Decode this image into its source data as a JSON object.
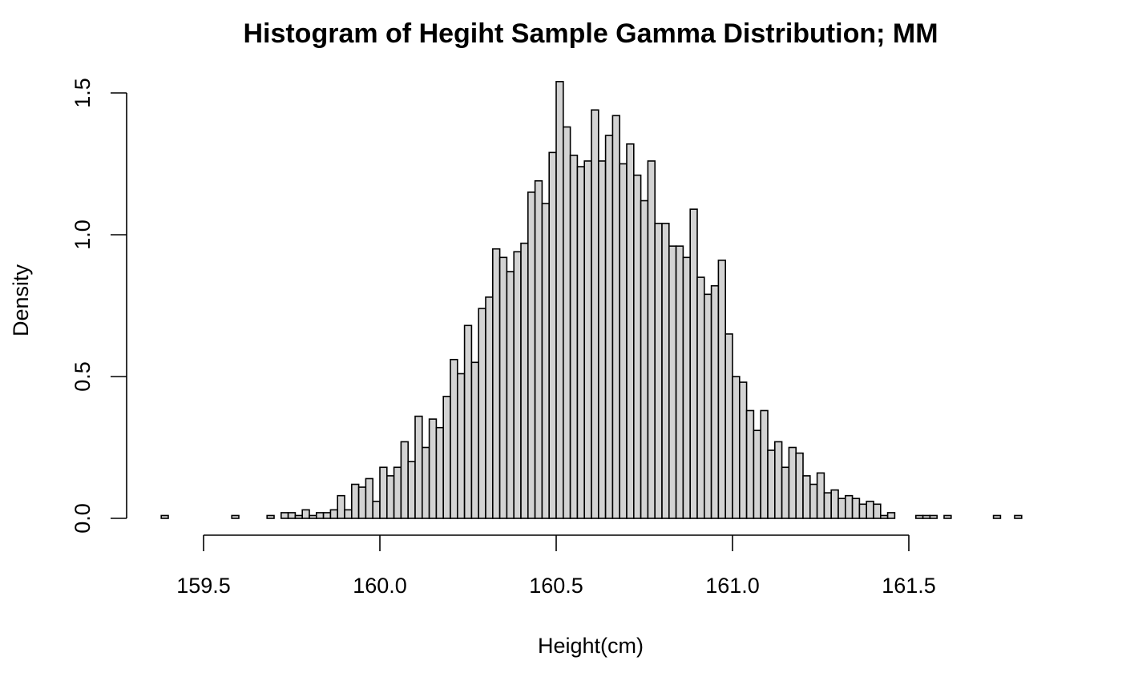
{
  "chart_data": {
    "type": "bar",
    "subtype": "histogram",
    "title": "Histogram of Hegiht Sample Gamma Distribution; MM",
    "xlabel": "Height(cm)",
    "ylabel": "Density",
    "xlim": [
      159.38,
      161.82
    ],
    "ylim": [
      0,
      1.55
    ],
    "x_ticks": [
      "159.5",
      "160.0",
      "160.5",
      "161.0",
      "161.5"
    ],
    "y_ticks": [
      "0.0",
      "0.5",
      "1.0",
      "1.5"
    ],
    "bin_start": 159.38,
    "bin_width": 0.02,
    "values": [
      0.01,
      0,
      0,
      0,
      0,
      0,
      0,
      0,
      0,
      0,
      0.01,
      0,
      0,
      0,
      0,
      0.01,
      0,
      0.02,
      0.02,
      0.01,
      0.03,
      0.01,
      0.02,
      0.02,
      0.03,
      0.08,
      0.03,
      0.12,
      0.11,
      0.14,
      0.06,
      0.18,
      0.15,
      0.18,
      0.27,
      0.2,
      0.36,
      0.25,
      0.35,
      0.32,
      0.43,
      0.56,
      0.51,
      0.68,
      0.55,
      0.74,
      0.78,
      0.95,
      0.92,
      0.87,
      0.94,
      0.97,
      1.15,
      1.19,
      1.11,
      1.29,
      1.54,
      1.38,
      1.28,
      1.24,
      1.26,
      1.44,
      1.26,
      1.35,
      1.42,
      1.25,
      1.32,
      1.21,
      1.12,
      1.26,
      1.04,
      1.04,
      0.96,
      0.96,
      0.92,
      1.09,
      0.85,
      0.79,
      0.82,
      0.91,
      0.65,
      0.5,
      0.48,
      0.38,
      0.31,
      0.38,
      0.24,
      0.27,
      0.18,
      0.25,
      0.23,
      0.15,
      0.12,
      0.16,
      0.09,
      0.1,
      0.07,
      0.08,
      0.07,
      0.05,
      0.06,
      0.05,
      0.01,
      0.02,
      0,
      0,
      0,
      0.01,
      0.01,
      0.01,
      0,
      0.01,
      0,
      0,
      0,
      0,
      0,
      0,
      0.01,
      0,
      0,
      0.01
    ],
    "bar_fill": "#d3d3d3",
    "bar_stroke": "#000000",
    "grid": false,
    "legend": "none"
  }
}
